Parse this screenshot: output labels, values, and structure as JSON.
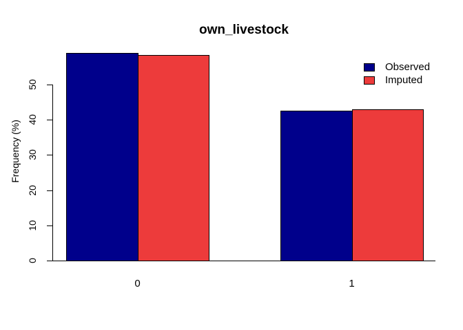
{
  "chart_data": {
    "type": "bar",
    "title": "own_livestock",
    "xlabel": "",
    "ylabel": "Frequency (%)",
    "categories": [
      "0",
      "1"
    ],
    "series": [
      {
        "name": "Observed",
        "color": "#00008B",
        "values": [
          58.9,
          42.6
        ]
      },
      {
        "name": "Imputed",
        "color": "#ED3B3B",
        "values": [
          58.4,
          42.9
        ]
      }
    ],
    "yticks": [
      0,
      10,
      20,
      30,
      40,
      50
    ],
    "ylim": [
      0,
      59
    ],
    "grid": false,
    "legend_position": "top-right",
    "bar_border_color": "#000000",
    "axis_color": "#000000",
    "background": "#FFFFFF"
  }
}
